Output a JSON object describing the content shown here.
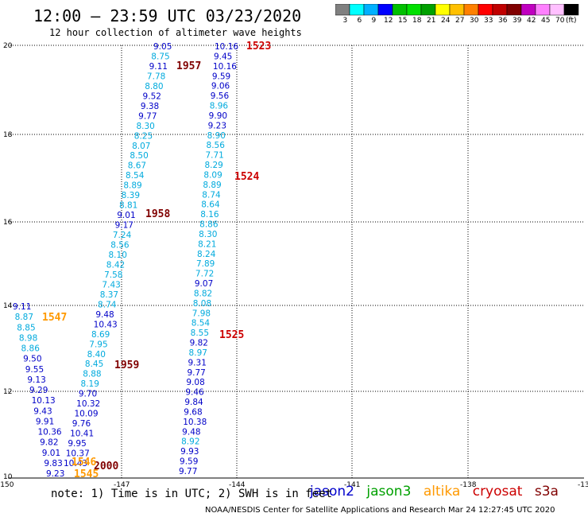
{
  "title": "12:00 – 23:59 UTC 03/23/2020",
  "subtitle": "12 hour collection of altimeter wave heights",
  "legend": {
    "colors": [
      "#808080",
      "#00ffff",
      "#00b0ff",
      "#0000ff",
      "#00c000",
      "#00e000",
      "#00a000",
      "#ffff00",
      "#ffc000",
      "#ff8000",
      "#ff0000",
      "#c00000",
      "#800000",
      "#c000c0",
      "#ff80ff",
      "#ffc0ff",
      "#000000"
    ],
    "labels": [
      "3",
      "6",
      "9",
      "12",
      "15",
      "18",
      "21",
      "24",
      "27",
      "30",
      "33",
      "36",
      "39",
      "42",
      "45",
      "70",
      "(ft)"
    ]
  },
  "axes": {
    "x_ticks": [
      "-150",
      "-147",
      "-144",
      "-141",
      "-138",
      "-13"
    ],
    "y_ticks": [
      "20",
      "18",
      "16",
      "14",
      "12",
      "10"
    ]
  },
  "satellites": [
    {
      "name": "jason2",
      "color": "#0000cc"
    },
    {
      "name": "jason3",
      "color": "#00a000"
    },
    {
      "name": "altika",
      "color": "#ff9900"
    },
    {
      "name": "cryosat",
      "color": "#cc0000"
    },
    {
      "name": "s3a",
      "color": "#800000"
    }
  ],
  "note": "note: 1) Time is in UTC; 2) SWH is in feet",
  "credit": "NOAA/NESDIS Center for Satellite Applications and Research   Mar 24 12:27:45 UTC 2020",
  "track_labels": [
    {
      "text": "1523",
      "color": "#cc0000"
    },
    {
      "text": "1957",
      "color": "#800000"
    },
    {
      "text": "1524",
      "color": "#cc0000"
    },
    {
      "text": "1958",
      "color": "#800000"
    },
    {
      "text": "1547",
      "color": "#ff9900"
    },
    {
      "text": "1525",
      "color": "#cc0000"
    },
    {
      "text": "1959",
      "color": "#800000"
    },
    {
      "text": "2000",
      "color": "#800000"
    },
    {
      "text": "1546",
      "color": "#ff9900"
    },
    {
      "text": "1545",
      "color": "#ff9900"
    }
  ],
  "track_a": {
    "values": [
      "9.05",
      "8.75",
      "9.11",
      "7.78",
      "8.80",
      "9.52",
      "9.38",
      "9.77",
      "8.30",
      "8.25",
      "8.07",
      "8.50",
      "8.67",
      "8.54",
      "8.89",
      "8.39",
      "8.81",
      "9.01",
      "9.17",
      "7.24",
      "8.56",
      "8.10",
      "8.42",
      "7.58",
      "7.43",
      "8.37",
      "8.74",
      "9.48",
      "10.43",
      "8.69",
      "7.95",
      "8.40",
      "8.45",
      "8.88",
      "8.19",
      "9.70",
      "10.32",
      "10.09",
      "9.76",
      "10.41",
      "9.95",
      "10.37",
      "10.43"
    ],
    "colors": [
      "b",
      "c",
      "b",
      "c",
      "c",
      "b",
      "b",
      "b",
      "c",
      "c",
      "c",
      "c",
      "c",
      "c",
      "c",
      "c",
      "c",
      "b",
      "b",
      "c",
      "c",
      "c",
      "c",
      "c",
      "c",
      "c",
      "c",
      "b",
      "b",
      "c",
      "c",
      "c",
      "c",
      "c",
      "c",
      "b",
      "b",
      "b",
      "b",
      "b",
      "b",
      "b",
      "b"
    ]
  },
  "track_b": {
    "values": [
      "10.16",
      "9.45",
      "10.16",
      "9.59",
      "9.06",
      "9.56",
      "8.96",
      "9.90",
      "9.23",
      "8.90",
      "8.56",
      "7.71",
      "8.29",
      "8.09",
      "8.89",
      "8.74",
      "8.64",
      "8.16",
      "8.86",
      "8.30",
      "8.21",
      "8.24",
      "7.89",
      "7.72",
      "9.07",
      "8.82",
      "8.08",
      "7.98",
      "8.54",
      "8.55",
      "9.82",
      "8.97",
      "9.31",
      "9.77",
      "9.08",
      "9.46",
      "9.84",
      "9.68",
      "10.38",
      "9.48",
      "8.92",
      "9.93",
      "9.59",
      "9.77"
    ],
    "colors": [
      "b",
      "b",
      "b",
      "b",
      "b",
      "b",
      "c",
      "b",
      "b",
      "c",
      "c",
      "c",
      "c",
      "c",
      "c",
      "c",
      "c",
      "c",
      "c",
      "c",
      "c",
      "c",
      "c",
      "c",
      "b",
      "c",
      "c",
      "c",
      "c",
      "c",
      "b",
      "c",
      "b",
      "b",
      "b",
      "b",
      "b",
      "b",
      "b",
      "b",
      "c",
      "b",
      "b",
      "b"
    ]
  },
  "track_c": {
    "values": [
      "9.11",
      "8.87",
      "8.85",
      "8.98",
      "8.86",
      "9.50",
      "9.55",
      "9.13",
      "9.29",
      "10.13",
      "9.43",
      "9.91",
      "10.36",
      "9.82",
      "9.01",
      "9.83",
      "9.23"
    ],
    "colors": [
      "b",
      "c",
      "c",
      "c",
      "c",
      "b",
      "b",
      "b",
      "b",
      "b",
      "b",
      "b",
      "b",
      "b",
      "b",
      "b",
      "b"
    ]
  }
}
